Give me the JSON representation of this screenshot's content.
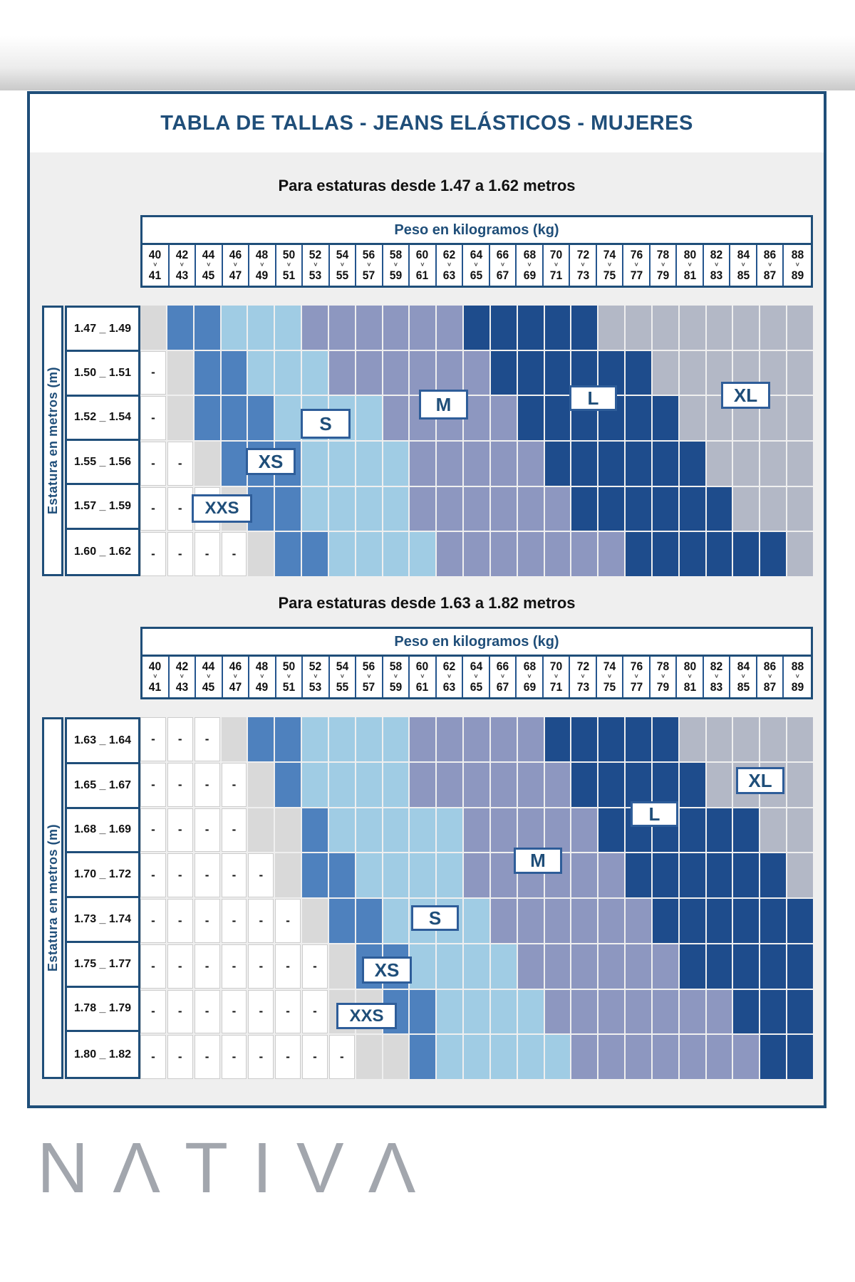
{
  "header": {
    "title": "TABLA DE TALLAS - JEANS ELÁSTICOS - MUJERES"
  },
  "axis": {
    "x_label": "Peso en kilogramos (kg)",
    "y_label": "Estatura en metros (m)",
    "chevron": "∨"
  },
  "weights": [
    [
      "40",
      "41"
    ],
    [
      "42",
      "43"
    ],
    [
      "44",
      "45"
    ],
    [
      "46",
      "47"
    ],
    [
      "48",
      "49"
    ],
    [
      "50",
      "51"
    ],
    [
      "52",
      "53"
    ],
    [
      "54",
      "55"
    ],
    [
      "56",
      "57"
    ],
    [
      "58",
      "59"
    ],
    [
      "60",
      "61"
    ],
    [
      "62",
      "63"
    ],
    [
      "64",
      "65"
    ],
    [
      "66",
      "67"
    ],
    [
      "68",
      "69"
    ],
    [
      "70",
      "71"
    ],
    [
      "72",
      "73"
    ],
    [
      "74",
      "75"
    ],
    [
      "76",
      "77"
    ],
    [
      "78",
      "79"
    ],
    [
      "80",
      "81"
    ],
    [
      "82",
      "83"
    ],
    [
      "84",
      "85"
    ],
    [
      "86",
      "87"
    ],
    [
      "88",
      "89"
    ]
  ],
  "colors": {
    "XXS": "#d9d9d9",
    "XS": "#4e81be",
    "S": "#a0cce4",
    "M": "#8d97c0",
    "L": "#1e4c8c",
    "XL": "#b3b8c6"
  },
  "dash": "-",
  "chart_data": [
    {
      "type": "heatmap",
      "title": "Para estaturas desde 1.47 a 1.62 metros",
      "x_label": "Peso en kilogramos (kg)",
      "y_label": "Estatura en metros (m)",
      "size_labels": [
        "XXS",
        "XS",
        "S",
        "M",
        "L",
        "XL"
      ],
      "rows": [
        {
          "label": "1.47 _ 1.49",
          "cells": [
            "XXS",
            "XS",
            "XS",
            "S",
            "S",
            "S",
            "M",
            "M",
            "M",
            "M",
            "M",
            "M",
            "L",
            "L",
            "L",
            "L",
            "L",
            "XL",
            "XL",
            "XL",
            "XL",
            "XL",
            "XL",
            "XL",
            "XL"
          ]
        },
        {
          "label": "1.50 _ 1.51",
          "cells": [
            "-",
            "XXS",
            "XS",
            "XS",
            "S",
            "S",
            "S",
            "M",
            "M",
            "M",
            "M",
            "M",
            "M",
            "L",
            "L",
            "L",
            "L",
            "L",
            "L",
            "XL",
            "XL",
            "XL",
            "XL",
            "XL",
            "XL"
          ]
        },
        {
          "label": "1.52 _ 1.54",
          "cells": [
            "-",
            "XXS",
            "XS",
            "XS",
            "XS",
            "S",
            "S",
            "S",
            "S",
            "M",
            "M",
            "M",
            "M",
            "M",
            "L",
            "L",
            "L",
            "L",
            "L",
            "L",
            "XL",
            "XL",
            "XL",
            "XL",
            "XL"
          ]
        },
        {
          "label": "1.55 _ 1.56",
          "cells": [
            "-",
            "-",
            "XXS",
            "XS",
            "XS",
            "XS",
            "S",
            "S",
            "S",
            "S",
            "M",
            "M",
            "M",
            "M",
            "M",
            "L",
            "L",
            "L",
            "L",
            "L",
            "L",
            "XL",
            "XL",
            "XL",
            "XL"
          ]
        },
        {
          "label": "1.57 _ 1.59",
          "cells": [
            "-",
            "-",
            "-",
            "XXS",
            "XS",
            "XS",
            "S",
            "S",
            "S",
            "S",
            "M",
            "M",
            "M",
            "M",
            "M",
            "M",
            "L",
            "L",
            "L",
            "L",
            "L",
            "L",
            "XL",
            "XL",
            "XL"
          ]
        },
        {
          "label": "1.60 _ 1.62",
          "cells": [
            "-",
            "-",
            "-",
            "-",
            "XXS",
            "XS",
            "XS",
            "S",
            "S",
            "S",
            "S",
            "M",
            "M",
            "M",
            "M",
            "M",
            "M",
            "M",
            "L",
            "L",
            "L",
            "L",
            "L",
            "L",
            "XL"
          ]
        }
      ]
    },
    {
      "type": "heatmap",
      "title": "Para estaturas desde 1.63 a 1.82 metros",
      "x_label": "Peso en kilogramos (kg)",
      "y_label": "Estatura en metros (m)",
      "size_labels": [
        "XXS",
        "XS",
        "S",
        "M",
        "L",
        "XL"
      ],
      "rows": [
        {
          "label": "1.63 _ 1.64",
          "cells": [
            "-",
            "-",
            "-",
            "XXS",
            "XS",
            "XS",
            "S",
            "S",
            "S",
            "S",
            "M",
            "M",
            "M",
            "M",
            "M",
            "L",
            "L",
            "L",
            "L",
            "L",
            "XL",
            "XL",
            "XL",
            "XL",
            "XL"
          ]
        },
        {
          "label": "1.65 _ 1.67",
          "cells": [
            "-",
            "-",
            "-",
            "-",
            "XXS",
            "XS",
            "S",
            "S",
            "S",
            "S",
            "M",
            "M",
            "M",
            "M",
            "M",
            "M",
            "L",
            "L",
            "L",
            "L",
            "L",
            "XL",
            "XL",
            "XL",
            "XL"
          ]
        },
        {
          "label": "1.68 _ 1.69",
          "cells": [
            "-",
            "-",
            "-",
            "-",
            "XXS",
            "XXS",
            "XS",
            "S",
            "S",
            "S",
            "S",
            "S",
            "M",
            "M",
            "M",
            "M",
            "M",
            "L",
            "L",
            "L",
            "L",
            "L",
            "L",
            "XL",
            "XL"
          ]
        },
        {
          "label": "1.70 _ 1.72",
          "cells": [
            "-",
            "-",
            "-",
            "-",
            "-",
            "XXS",
            "XS",
            "XS",
            "S",
            "S",
            "S",
            "S",
            "M",
            "M",
            "M",
            "M",
            "M",
            "M",
            "L",
            "L",
            "L",
            "L",
            "L",
            "L",
            "XL"
          ]
        },
        {
          "label": "1.73 _ 1.74",
          "cells": [
            "-",
            "-",
            "-",
            "-",
            "-",
            "-",
            "XXS",
            "XS",
            "XS",
            "S",
            "S",
            "S",
            "S",
            "M",
            "M",
            "M",
            "M",
            "M",
            "M",
            "L",
            "L",
            "L",
            "L",
            "L",
            "L"
          ]
        },
        {
          "label": "1.75 _ 1.77",
          "cells": [
            "-",
            "-",
            "-",
            "-",
            "-",
            "-",
            "-",
            "XXS",
            "XS",
            "XS",
            "S",
            "S",
            "S",
            "S",
            "M",
            "M",
            "M",
            "M",
            "M",
            "M",
            "L",
            "L",
            "L",
            "L",
            "L"
          ]
        },
        {
          "label": "1.78 _ 1.79",
          "cells": [
            "-",
            "-",
            "-",
            "-",
            "-",
            "-",
            "-",
            "XXS",
            "XXS",
            "XS",
            "XS",
            "S",
            "S",
            "S",
            "S",
            "M",
            "M",
            "M",
            "M",
            "M",
            "M",
            "M",
            "L",
            "L",
            "L"
          ]
        },
        {
          "label": "1.80 _ 1.82",
          "cells": [
            "-",
            "-",
            "-",
            "-",
            "-",
            "-",
            "-",
            "-",
            "XXS",
            "XXS",
            "XS",
            "S",
            "S",
            "S",
            "S",
            "S",
            "M",
            "M",
            "M",
            "M",
            "M",
            "M",
            "M",
            "L",
            "L"
          ]
        }
      ]
    }
  ],
  "logo": {
    "text": "NATIVA",
    "display": "NΛTIVΛ"
  }
}
